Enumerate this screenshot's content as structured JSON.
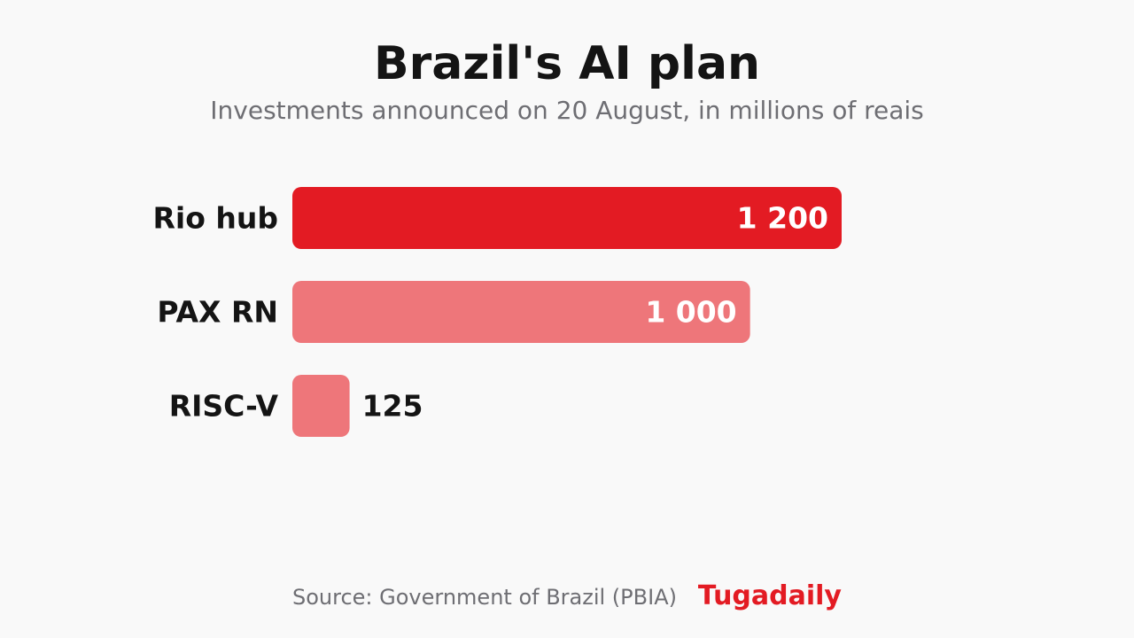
{
  "header": {
    "title": "Brazil's AI plan",
    "subtitle": "Investments announced on 20 August, in millions of reais"
  },
  "chart_data": {
    "type": "bar",
    "orientation": "horizontal",
    "categories": [
      "Rio hub",
      "PAX RN",
      "RISC-V"
    ],
    "values": [
      1200,
      1000,
      125
    ],
    "value_labels": [
      "1 200",
      "1 000",
      "125"
    ],
    "title": "Brazil's AI plan",
    "subtitle": "Investments announced on 20 August, in millions of reais",
    "xlabel": "",
    "ylabel": "",
    "xlim": [
      0,
      1200
    ],
    "grid": false,
    "legend": "none",
    "colors": {
      "highlight": "#e31b23",
      "default": "#ee767a",
      "label_inside": "#ffffff",
      "label_outside": "#141414"
    }
  },
  "footer": {
    "source": "Source: Government of Brazil (PBIA)",
    "brand": "Tugadaily"
  },
  "theme": {
    "background": "#f9f9f9",
    "title_color": "#141414",
    "muted_text": "#6e6e73",
    "brand_color": "#e31b23"
  }
}
